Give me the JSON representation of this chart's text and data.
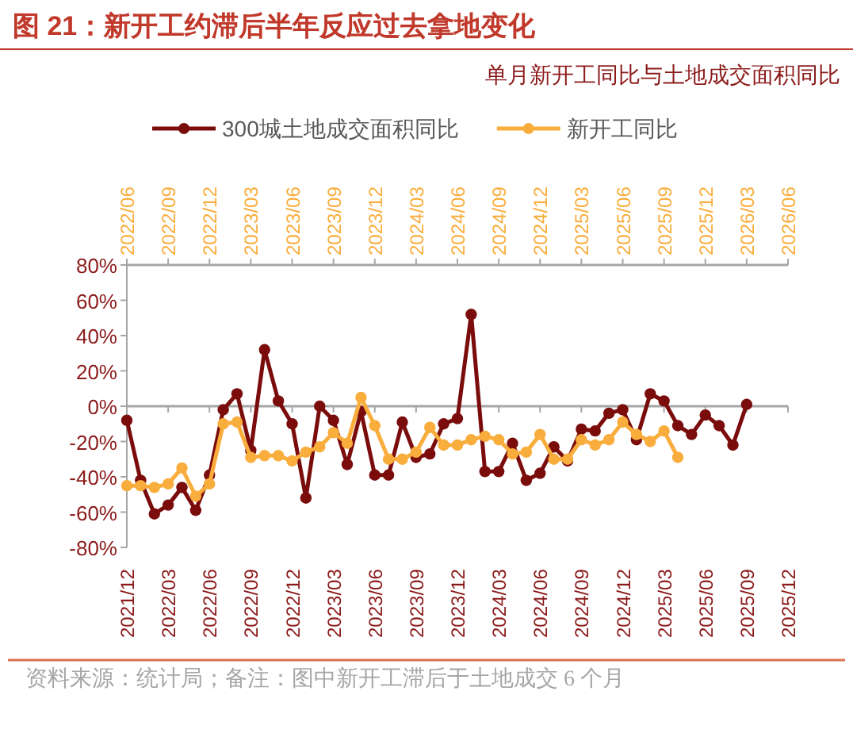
{
  "chart_data": {
    "type": "line",
    "title": "图 21：新开工约滞后半年反应过去拿地变化",
    "subtitle": "单月新开工同比与土地成交面积同比",
    "annotations": [
      "资料来源：统计局；备注：图中新开工滞后于土地成交 6 个月"
    ],
    "legend": "top",
    "marker": "circle",
    "xlim": [
      "2021-12",
      "2025-12"
    ],
    "xticks": [
      {
        "value": "2021-12",
        "label": "2021/12"
      },
      {
        "value": "2022-03",
        "label": "2022/03"
      },
      {
        "value": "2022-06",
        "label": "2022/06"
      },
      {
        "value": "2022-09",
        "label": "2022/09"
      },
      {
        "value": "2022-12",
        "label": "2022/12"
      },
      {
        "value": "2023-03",
        "label": "2023/03"
      },
      {
        "value": "2023-06",
        "label": "2023/06"
      },
      {
        "value": "2023-09",
        "label": "2023/09"
      },
      {
        "value": "2023-12",
        "label": "2023/12"
      },
      {
        "value": "2024-03",
        "label": "2024/03"
      },
      {
        "value": "2024-06",
        "label": "2024/06"
      },
      {
        "value": "2024-09",
        "label": "2024/09"
      },
      {
        "value": "2024-12",
        "label": "2024/12"
      },
      {
        "value": "2025-03",
        "label": "2025/03"
      },
      {
        "value": "2025-06",
        "label": "2025/06"
      },
      {
        "value": "2025-09",
        "label": "2025/09"
      },
      {
        "value": "2025-12",
        "label": "2025/12"
      }
    ],
    "x2lim": [
      "2022-06",
      "2026-06"
    ],
    "x2ticks": [
      {
        "value": "2022-06",
        "label": "2022/06"
      },
      {
        "value": "2022-09",
        "label": "2022/09"
      },
      {
        "value": "2022-12",
        "label": "2022/12"
      },
      {
        "value": "2023-03",
        "label": "2023/03"
      },
      {
        "value": "2023-06",
        "label": "2023/06"
      },
      {
        "value": "2023-09",
        "label": "2023/09"
      },
      {
        "value": "2023-12",
        "label": "2023/12"
      },
      {
        "value": "2024-03",
        "label": "2024/03"
      },
      {
        "value": "2024-06",
        "label": "2024/06"
      },
      {
        "value": "2024-09",
        "label": "2024/09"
      },
      {
        "value": "2024-12",
        "label": "2024/12"
      },
      {
        "value": "2025-03",
        "label": "2025/03"
      },
      {
        "value": "2025-06",
        "label": "2025/06"
      },
      {
        "value": "2025-09",
        "label": "2025/09"
      },
      {
        "value": "2025-12",
        "label": "2025/12"
      },
      {
        "value": "2026-03",
        "label": "2026/03"
      },
      {
        "value": "2026-06",
        "label": "2026/06"
      }
    ],
    "ylim": [
      -80,
      80
    ],
    "yticks": [
      {
        "value": 80,
        "label": "80%"
      },
      {
        "value": 60,
        "label": "60%"
      },
      {
        "value": 40,
        "label": "40%"
      },
      {
        "value": 20,
        "label": "20%"
      },
      {
        "value": 0,
        "label": "0%"
      },
      {
        "value": -20,
        "label": "-20%"
      },
      {
        "value": -40,
        "label": "-40%"
      },
      {
        "value": -60,
        "label": "-60%"
      },
      {
        "value": -80,
        "label": "-80%"
      }
    ],
    "series": [
      {
        "name": "300城土地成交面积同比",
        "color": "#7b0c0c",
        "x": [
          "2021-12",
          "2022-01",
          "2022-02",
          "2022-03",
          "2022-04",
          "2022-05",
          "2022-06",
          "2022-07",
          "2022-08",
          "2022-09",
          "2022-10",
          "2022-11",
          "2022-12",
          "2023-01",
          "2023-02",
          "2023-03",
          "2023-04",
          "2023-05",
          "2023-06",
          "2023-07",
          "2023-08",
          "2023-09",
          "2023-10",
          "2023-11",
          "2023-12",
          "2024-01",
          "2024-02",
          "2024-03",
          "2024-04",
          "2024-05",
          "2024-06",
          "2024-07",
          "2024-08",
          "2024-09",
          "2024-10",
          "2024-11",
          "2024-12",
          "2025-01",
          "2025-02",
          "2025-03",
          "2025-04",
          "2025-05",
          "2025-06",
          "2025-07",
          "2025-08",
          "2025-09"
        ],
        "values": [
          -8,
          -42,
          -61,
          -56,
          -46,
          -59,
          -39,
          -2,
          7,
          -25,
          32,
          3,
          -10,
          -52,
          0,
          -8,
          -33,
          -3,
          -39,
          -39,
          -9,
          -29,
          -27,
          -10,
          -7,
          52,
          -37,
          -37,
          -21,
          -42,
          -38,
          -23,
          -31,
          -13,
          -14,
          -4,
          -2,
          -19,
          7,
          3,
          -11,
          -16,
          -5,
          -11,
          -22,
          1
        ]
      },
      {
        "name": "新开工同比",
        "color": "#f9ad3c",
        "axis": "x2",
        "x": [
          "2022-06",
          "2022-07",
          "2022-08",
          "2022-09",
          "2022-10",
          "2022-11",
          "2022-12",
          "2023-01",
          "2023-02",
          "2023-03",
          "2023-04",
          "2023-05",
          "2023-06",
          "2023-07",
          "2023-08",
          "2023-09",
          "2023-10",
          "2023-11",
          "2023-12",
          "2024-01",
          "2024-02",
          "2024-03",
          "2024-04",
          "2024-05",
          "2024-06",
          "2024-07",
          "2024-08",
          "2024-09",
          "2024-10",
          "2024-11",
          "2024-12",
          "2025-01",
          "2025-02",
          "2025-03",
          "2025-04",
          "2025-05",
          "2025-06",
          "2025-07",
          "2025-08",
          "2025-09",
          "2025-10"
        ],
        "values": [
          -45,
          -45,
          -46,
          -44,
          -35,
          -51,
          -44,
          -10,
          -9,
          -29,
          -28,
          -28,
          -31,
          -26,
          -23,
          -15,
          -21,
          5,
          -11,
          -30,
          -30,
          -26,
          -12,
          -22,
          -22,
          -19,
          -17,
          -19,
          -27,
          -26,
          -16,
          -30,
          -30,
          -19,
          -22,
          -19,
          -9,
          -16,
          -20,
          -14,
          -29
        ]
      }
    ]
  }
}
